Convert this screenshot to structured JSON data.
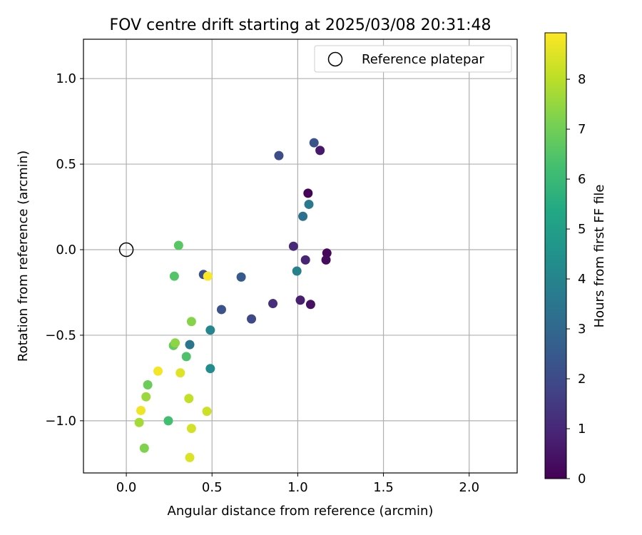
{
  "chart_data": {
    "type": "scatter",
    "title": "FOV centre drift starting at 2025/03/08 20:31:48",
    "xlabel": "Angular distance from reference (arcmin)",
    "ylabel": "Rotation from reference (arcmin)",
    "xlim": [
      -0.25,
      2.28
    ],
    "ylim": [
      -1.305,
      1.23
    ],
    "xticks": [
      0.0,
      0.5,
      1.0,
      1.5,
      2.0
    ],
    "xtick_labels": [
      "0.0",
      "0.5",
      "1.0",
      "1.5",
      "2.0"
    ],
    "yticks": [
      -1.0,
      -0.5,
      0.0,
      0.5,
      1.0
    ],
    "ytick_labels": [
      "−1.0",
      "−0.5",
      "0.0",
      "0.5",
      "1.0"
    ],
    "grid": true,
    "legend": {
      "position": "top-right",
      "entries": [
        "Reference platepar"
      ]
    },
    "reference_point": {
      "x": 0.0,
      "y": 0.0,
      "label": "Reference platepar"
    },
    "colorbar": {
      "label": "Hours from first FF file",
      "colormap": "viridis",
      "range": [
        0,
        8.93
      ],
      "ticks": [
        0,
        1,
        2,
        3,
        4,
        5,
        6,
        7,
        8
      ],
      "tick_labels": [
        "0",
        "1",
        "2",
        "3",
        "4",
        "5",
        "6",
        "7",
        "8"
      ]
    },
    "points": [
      {
        "x": 1.06,
        "y": 0.33,
        "c": 0.05
      },
      {
        "x": 1.17,
        "y": -0.02,
        "c": 0.15
      },
      {
        "x": 1.165,
        "y": -0.06,
        "c": 0.25
      },
      {
        "x": 1.075,
        "y": -0.32,
        "c": 0.4
      },
      {
        "x": 1.13,
        "y": 0.58,
        "c": 0.6
      },
      {
        "x": 1.015,
        "y": -0.295,
        "c": 0.75
      },
      {
        "x": 1.045,
        "y": -0.06,
        "c": 0.9
      },
      {
        "x": 0.975,
        "y": 0.02,
        "c": 1.05
      },
      {
        "x": 0.855,
        "y": -0.315,
        "c": 1.2
      },
      {
        "x": 1.095,
        "y": 0.625,
        "c": 2.3
      },
      {
        "x": 0.89,
        "y": 0.55,
        "c": 2.1
      },
      {
        "x": 0.73,
        "y": -0.405,
        "c": 1.95
      },
      {
        "x": 0.67,
        "y": -0.16,
        "c": 2.5
      },
      {
        "x": 0.555,
        "y": -0.35,
        "c": 2.25
      },
      {
        "x": 0.45,
        "y": -0.145,
        "c": 2.15
      },
      {
        "x": 1.03,
        "y": 0.195,
        "c": 3.3
      },
      {
        "x": 1.065,
        "y": 0.265,
        "c": 3.6
      },
      {
        "x": 0.995,
        "y": -0.125,
        "c": 3.9
      },
      {
        "x": 0.37,
        "y": -0.555,
        "c": 3.5
      },
      {
        "x": 0.49,
        "y": -0.47,
        "c": 4.1
      },
      {
        "x": 0.49,
        "y": -0.695,
        "c": 4.3
      },
      {
        "x": 0.245,
        "y": -1.0,
        "c": 6.2
      },
      {
        "x": 0.35,
        "y": -0.625,
        "c": 6.4
      },
      {
        "x": 0.28,
        "y": -0.155,
        "c": 6.5
      },
      {
        "x": 0.305,
        "y": 0.025,
        "c": 6.6
      },
      {
        "x": 0.275,
        "y": -0.56,
        "c": 6.8
      },
      {
        "x": 0.125,
        "y": -0.79,
        "c": 6.9
      },
      {
        "x": 0.105,
        "y": -1.16,
        "c": 7.2
      },
      {
        "x": 0.38,
        "y": -0.42,
        "c": 7.3
      },
      {
        "x": 0.285,
        "y": -0.545,
        "c": 7.4
      },
      {
        "x": 0.115,
        "y": -0.86,
        "c": 7.6
      },
      {
        "x": 0.075,
        "y": -1.01,
        "c": 7.7
      },
      {
        "x": 0.365,
        "y": -0.87,
        "c": 8.1
      },
      {
        "x": 0.47,
        "y": -0.945,
        "c": 8.25
      },
      {
        "x": 0.38,
        "y": -1.045,
        "c": 8.35
      },
      {
        "x": 0.37,
        "y": -1.215,
        "c": 8.45
      },
      {
        "x": 0.315,
        "y": -0.72,
        "c": 8.5
      },
      {
        "x": 0.085,
        "y": -0.94,
        "c": 8.75
      },
      {
        "x": 0.185,
        "y": -0.71,
        "c": 8.8
      },
      {
        "x": 0.475,
        "y": -0.155,
        "c": 8.9
      }
    ]
  }
}
